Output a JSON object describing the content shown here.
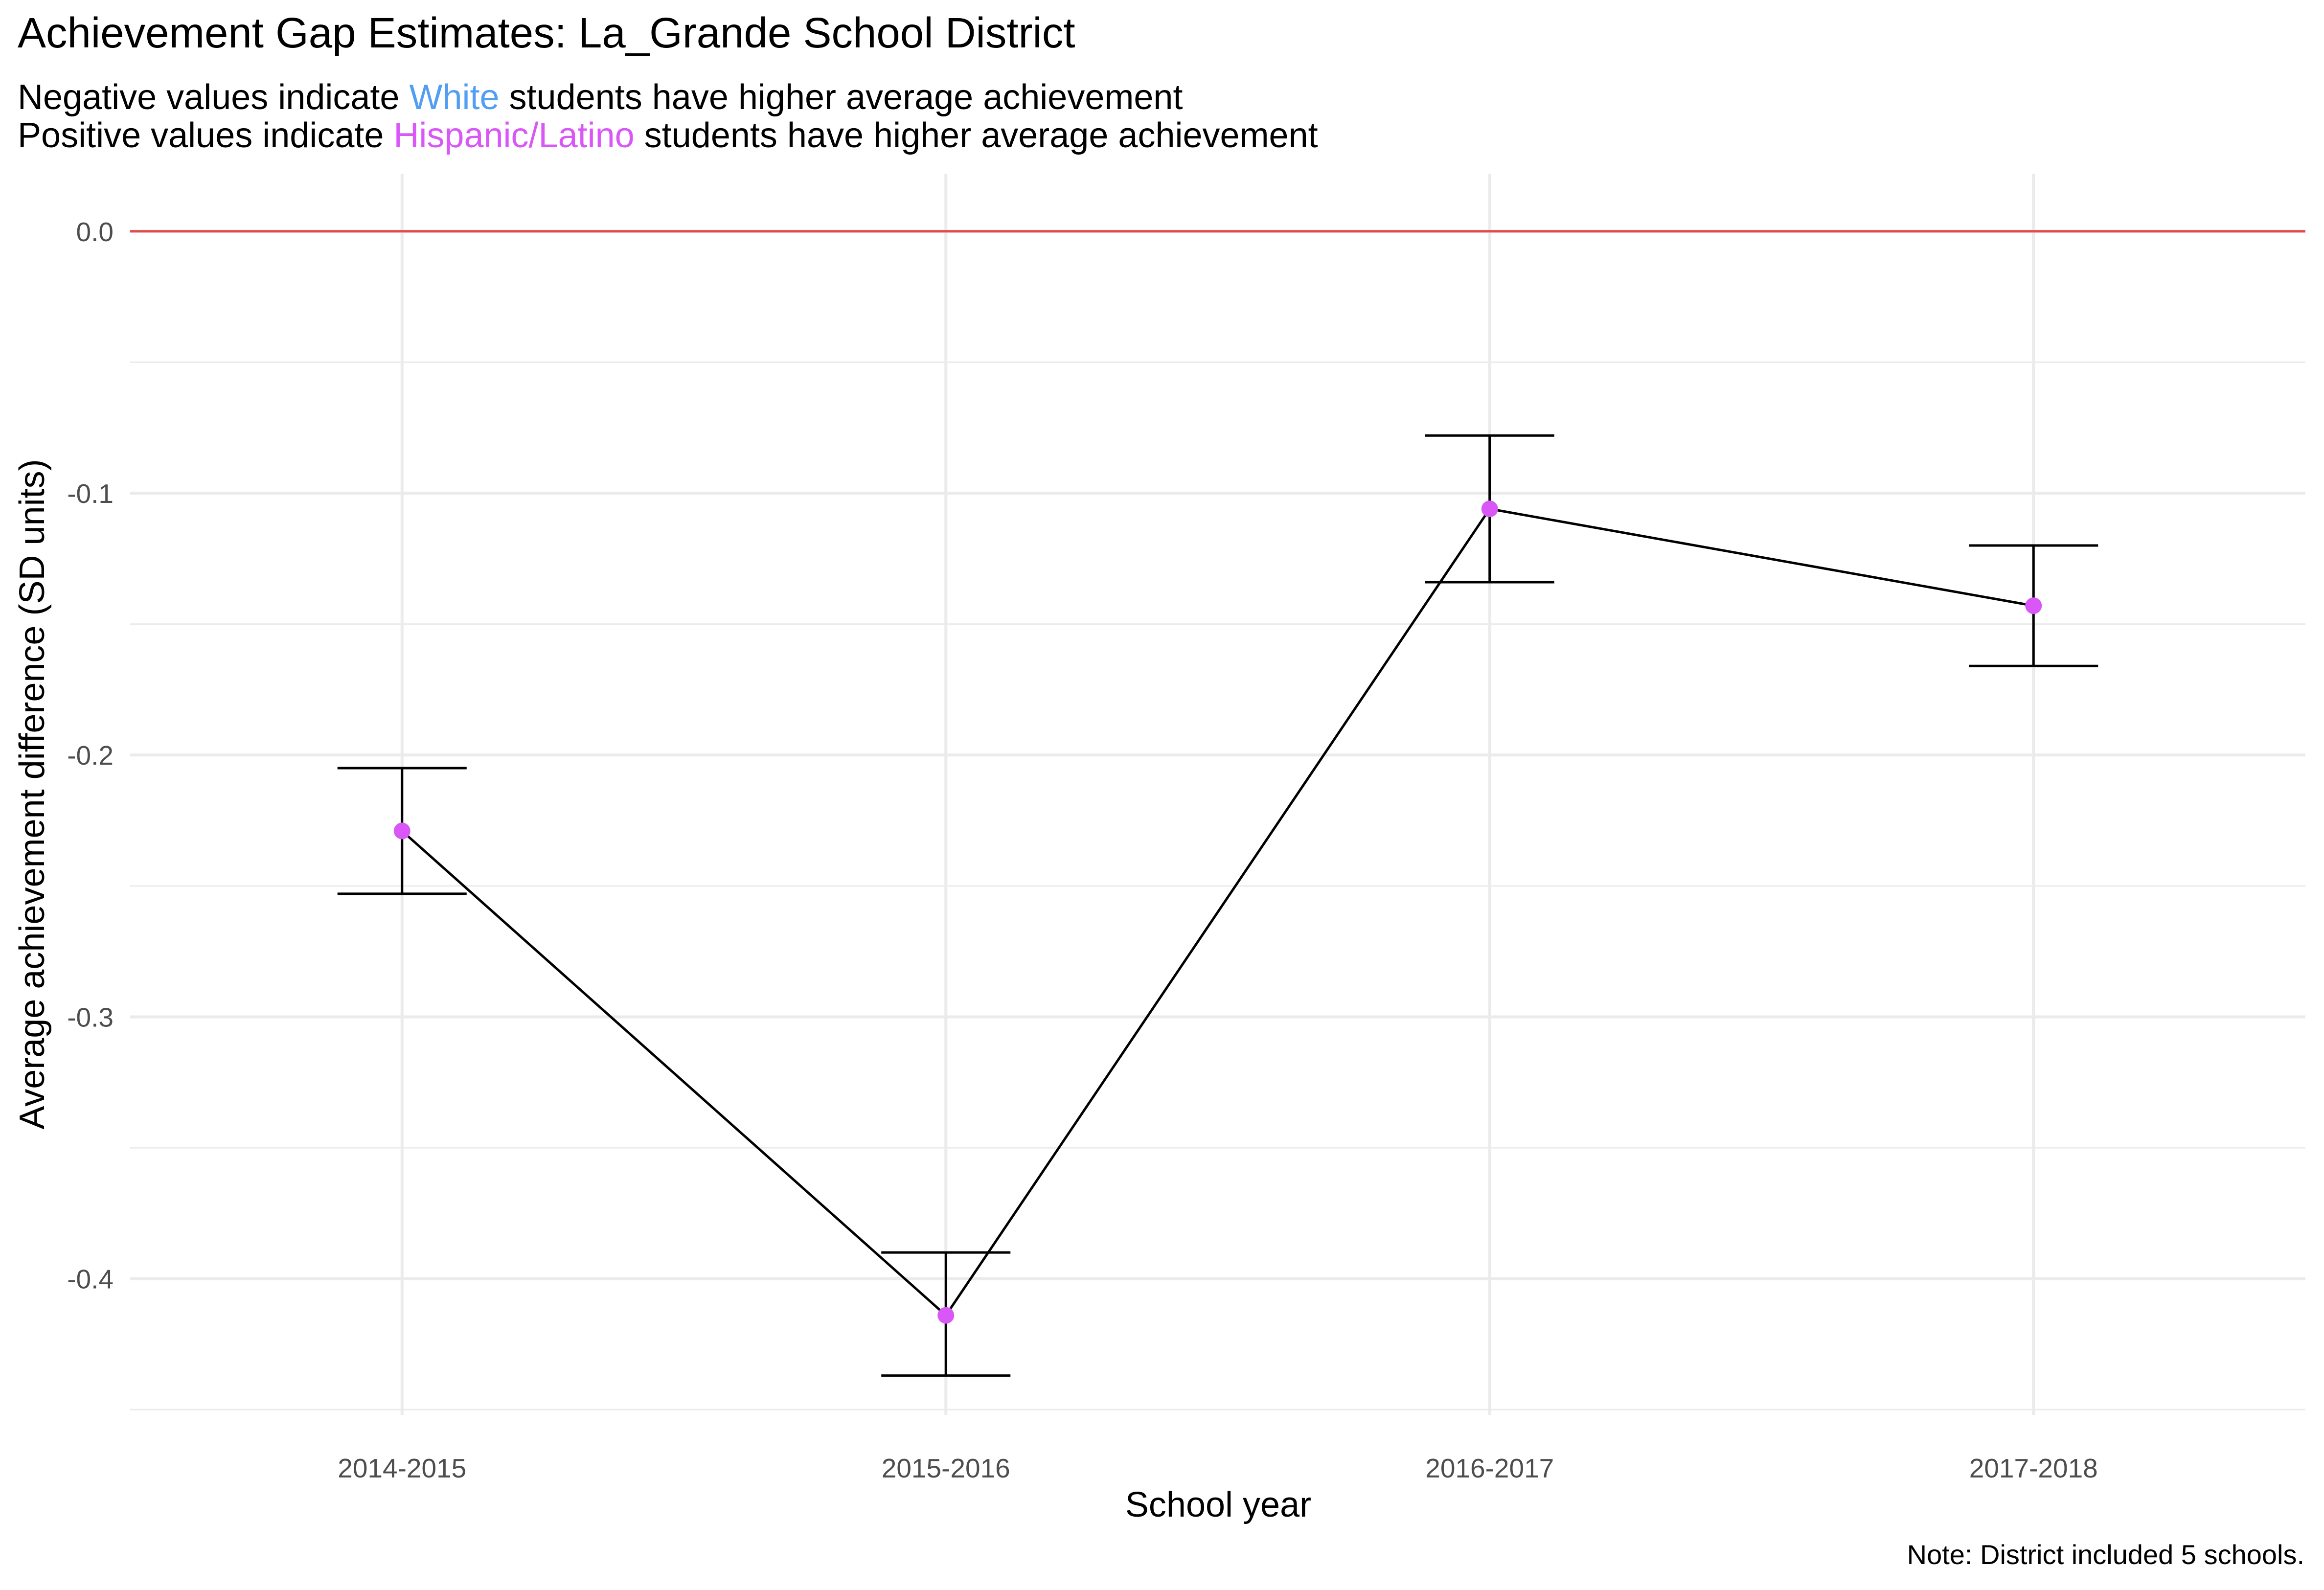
{
  "chart_data": {
    "type": "line",
    "title": "Achievement Gap Estimates: La_Grande School District",
    "subtitle": {
      "line1": {
        "before": "Negative values indicate",
        "highlight": "White",
        "after": "students have higher average achievement"
      },
      "line2": {
        "before": "Positive values indicate",
        "highlight": "Hispanic/Latino",
        "after": "students have higher average achievement"
      }
    },
    "xlabel": "School year",
    "ylabel": "Average achievement difference (SD units)",
    "caption": "Note: District included 5 schools.",
    "categories": [
      "2014-2015",
      "2015-2016",
      "2016-2017",
      "2017-2018"
    ],
    "series": [
      {
        "values": [
          -0.229,
          -0.414,
          -0.106,
          -0.143
        ],
        "lower": [
          -0.253,
          -0.437,
          -0.134,
          -0.166
        ],
        "upper": [
          -0.205,
          -0.39,
          -0.078,
          -0.12
        ]
      }
    ],
    "ylim": [
      -0.452,
      0.022
    ],
    "yticks": [
      0.0,
      -0.1,
      -0.2,
      -0.3,
      -0.4
    ],
    "ytick_labels": [
      "0.0",
      "-0.1",
      "-0.2",
      "-0.3",
      "-0.4"
    ],
    "reference_line": 0.0,
    "grid": true,
    "colors": {
      "white": "#529EF2",
      "hispanic": "#D957F7",
      "point": "#D957F7",
      "line": "#000000",
      "reference": "#E5484D",
      "grid": "#EBEBEB",
      "tick_text": "#4D4D4D"
    }
  }
}
